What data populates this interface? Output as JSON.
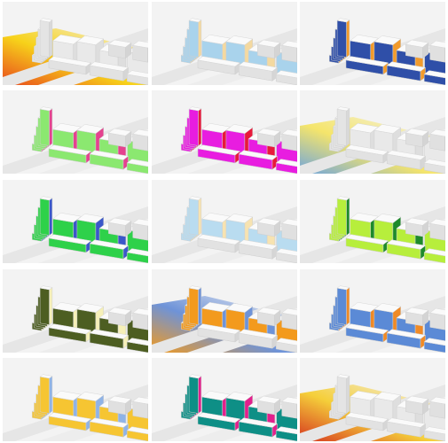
{
  "panels": [
    {
      "scheme": "thermal-red-yellow",
      "accent": "#e8491d",
      "accent2": "#f7d21a",
      "ground": true,
      "faces": "none"
    },
    {
      "scheme": "pale-blue-cream",
      "accent": "#a9d3ec",
      "accent2": "#f4d9a0",
      "ground": false,
      "faces": "soft"
    },
    {
      "scheme": "navy-orange",
      "accent": "#2f4fa8",
      "accent2": "#f29b2c",
      "ground": false,
      "faces": "strong"
    },
    {
      "scheme": "green-pink",
      "accent": "#8be870",
      "accent2": "#e4428f",
      "ground": false,
      "faces": "strong"
    },
    {
      "scheme": "magenta-red",
      "accent": "#e81de0",
      "accent2": "#e8193a",
      "ground": false,
      "faces": "strong"
    },
    {
      "scheme": "ground-blue-yellow",
      "accent": "#6fa5dd",
      "accent2": "#f5e56b",
      "ground": true,
      "faces": "none"
    },
    {
      "scheme": "bright-green-blue",
      "accent": "#2ed14a",
      "accent2": "#3a57c9",
      "ground": false,
      "faces": "strong"
    },
    {
      "scheme": "pale-blue-cream-2",
      "accent": "#b9dcf0",
      "accent2": "#f7e3b1",
      "ground": false,
      "faces": "soft"
    },
    {
      "scheme": "lime-green",
      "accent": "#b7ee3c",
      "accent2": "#1d8a2a",
      "ground": false,
      "faces": "strong"
    },
    {
      "scheme": "olive-cream",
      "accent": "#4d5e22",
      "accent2": "#f6f0b8",
      "ground": false,
      "faces": "strong"
    },
    {
      "scheme": "ground-orange-blue",
      "accent": "#f39a1d",
      "accent2": "#6e93d8",
      "ground": true,
      "faces": "soft"
    },
    {
      "scheme": "blue-orange",
      "accent": "#5b8ad6",
      "accent2": "#f08a26",
      "ground": false,
      "faces": "strong"
    },
    {
      "scheme": "yellow-blue",
      "accent": "#f6c532",
      "accent2": "#8fb3e6",
      "ground": false,
      "faces": "strong"
    },
    {
      "scheme": "teal-magenta",
      "accent": "#0e8f86",
      "accent2": "#e2208c",
      "ground": false,
      "faces": "strong"
    },
    {
      "scheme": "thermal-red-yellow-2",
      "accent": "#d6361f",
      "accent2": "#f5cf3a",
      "ground": true,
      "faces": "none"
    }
  ]
}
